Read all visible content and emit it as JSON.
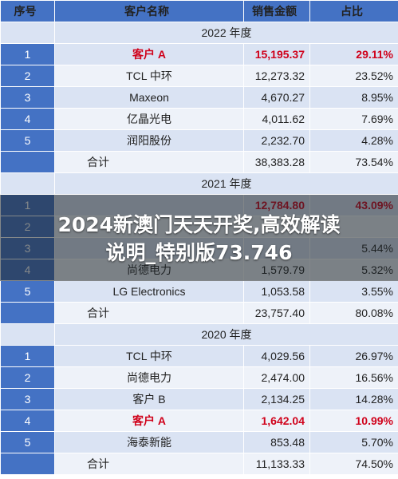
{
  "headers": {
    "index": "序号",
    "customer": "客户名称",
    "sales": "销售金额",
    "share": "占比"
  },
  "sections": [
    {
      "year": "2022 年度",
      "rows": [
        {
          "index": "1",
          "name": "客户 A",
          "sales": "15,195.37",
          "share": "29.11%",
          "highlight": true
        },
        {
          "index": "2",
          "name": "TCL 中环",
          "sales": "12,273.32",
          "share": "23.52%"
        },
        {
          "index": "3",
          "name": "Maxeon",
          "sales": "4,670.27",
          "share": "8.95%"
        },
        {
          "index": "4",
          "name": "亿晶光电",
          "sales": "4,011.62",
          "share": "7.69%"
        },
        {
          "index": "5",
          "name": "润阳股份",
          "sales": "2,232.70",
          "share": "4.28%"
        }
      ],
      "total": {
        "name": "合计",
        "sales": "38,383.28",
        "share": "73.54%"
      }
    },
    {
      "year": "2021 年度",
      "rows": [
        {
          "index": "1",
          "name": "",
          "sales": "12,784.80",
          "share": "43.09%",
          "highlight": true
        },
        {
          "index": "2",
          "name": "",
          "sales": "",
          "share": ""
        },
        {
          "index": "3",
          "name": "",
          "sales": "",
          "share": "5.44%"
        },
        {
          "index": "4",
          "name": "尚德电力",
          "sales": "1,579.79",
          "share": "5.32%"
        },
        {
          "index": "5",
          "name": "LG Electronics",
          "sales": "1,053.58",
          "share": "3.55%"
        }
      ],
      "total": {
        "name": "合计",
        "sales": "23,757.40",
        "share": "80.08%"
      }
    },
    {
      "year": "2020 年度",
      "rows": [
        {
          "index": "1",
          "name": "TCL 中环",
          "sales": "4,029.56",
          "share": "26.97%"
        },
        {
          "index": "2",
          "name": "尚德电力",
          "sales": "2,474.00",
          "share": "16.56%"
        },
        {
          "index": "3",
          "name": "客户 B",
          "sales": "2,134.25",
          "share": "14.28%"
        },
        {
          "index": "4",
          "name": "客户 A",
          "sales": "1,642.04",
          "share": "10.99%",
          "highlight": true
        },
        {
          "index": "5",
          "name": "海泰新能",
          "sales": "853.48",
          "share": "5.70%"
        }
      ],
      "total": {
        "name": "合计",
        "sales": "11,133.33",
        "share": "74.50%"
      }
    }
  ],
  "banner": {
    "line1": "2024新澳门天天开奖,高效解读",
    "line2": "说明_特别版73.746"
  },
  "colors": {
    "header": "#4472c4",
    "row": "#dae3f3",
    "highlight": "#d0021b"
  }
}
